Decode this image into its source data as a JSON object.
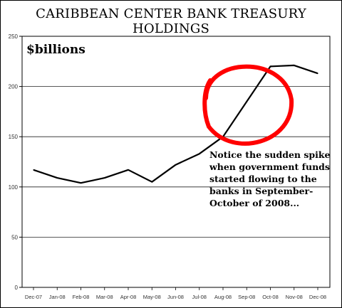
{
  "chart_data": {
    "type": "line",
    "title": "CARIBBEAN CENTER BANK TREASURY HOLDINGS",
    "ylabel": "$billions",
    "xlabel": "",
    "categories": [
      "Dec-07",
      "Jan-08",
      "Feb-08",
      "Mar-08",
      "Apr-08",
      "May-08",
      "Jun-08",
      "Jul-08",
      "Aug-08",
      "Sep-08",
      "Oct-08",
      "Nov-08",
      "Dec-08"
    ],
    "series": [
      {
        "values": [
          117,
          109,
          104,
          109,
          117,
          105,
          122,
          133,
          150,
          185,
          220,
          221,
          213
        ]
      }
    ],
    "ylim": [
      0,
      250
    ],
    "yticks": [
      0,
      50,
      100,
      150,
      200,
      250
    ],
    "grid": true,
    "line_color": "#000000",
    "annotations": [
      {
        "text": "Notice the sudden spike when government funds started flowing to the banks in September-October of 2008...",
        "lines": [
          "Notice the sudden spike",
          "when government funds",
          "started flowing to the",
          "banks in September-",
          "October of 2008..."
        ]
      }
    ],
    "highlight": {
      "shape": "circle",
      "color": "#ff0000",
      "around_x": [
        "Aug-08",
        "Oct-08"
      ]
    }
  }
}
